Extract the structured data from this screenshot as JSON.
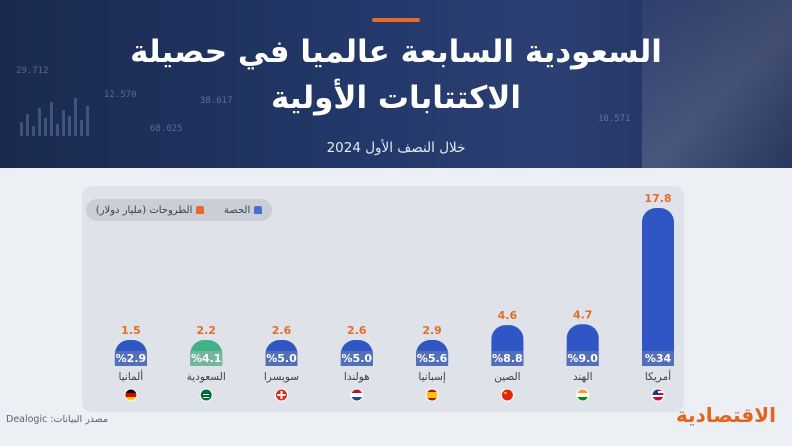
{
  "header": {
    "title_line1": "السعودية السابعة عالميا في حصيلة",
    "title_line2": "الاكتتابات الأولية",
    "subtitle": "خلال النصف الأول 2024",
    "decor_numbers": [
      "29.712",
      "12.570",
      "38.617",
      "10.571",
      "68.025"
    ]
  },
  "legend": {
    "share_label": "الحصة",
    "offerings_label": "الطروحات (مليار دولار)"
  },
  "source": "مصدر البيانات: Dealogic",
  "logo": "الاقتصادية",
  "colors": {
    "bar": "#2f56c4",
    "bar_top": "#3d68dc",
    "highlight_bar": "#3fb28a",
    "value_label": "#e56b28",
    "share_band": "#5872b8",
    "share_band_highlight": "#7ab79d",
    "accent": "#e56b28"
  },
  "chart_data": {
    "type": "bar",
    "title": "السعودية السابعة عالميا في حصيلة الاكتتابات الأولية",
    "subtitle": "خلال النصف الأول 2024",
    "categories": [
      "أمريكا",
      "الهند",
      "الصين",
      "إسبانيا",
      "هولندا",
      "سويسرا",
      "السعودية",
      "ألمانيا"
    ],
    "series": [
      {
        "name": "الطروحات (مليار دولار)",
        "values": [
          17.8,
          4.7,
          4.6,
          2.9,
          2.6,
          2.6,
          2.2,
          1.5
        ]
      },
      {
        "name": "الحصة",
        "values": [
          34,
          9.0,
          8.8,
          5.6,
          5.0,
          5.0,
          4.1,
          2.9
        ]
      }
    ],
    "value_labels": [
      "17.8",
      "4.7",
      "4.6",
      "2.9",
      "2.6",
      "2.6",
      "2.2",
      "1.5"
    ],
    "share_labels": [
      "34",
      "9.0",
      "8.8",
      "5.6",
      "5.0",
      "5.0",
      "4.1",
      "2.9"
    ],
    "share_unit": "%",
    "flags": [
      "us-flag",
      "india-flag",
      "china-flag",
      "spain-flag",
      "netherlands-flag",
      "switzerland-flag",
      "saudi-flag",
      "germany-flag"
    ],
    "highlight_category": "السعودية",
    "legend_position": "top-left",
    "grid": false
  }
}
